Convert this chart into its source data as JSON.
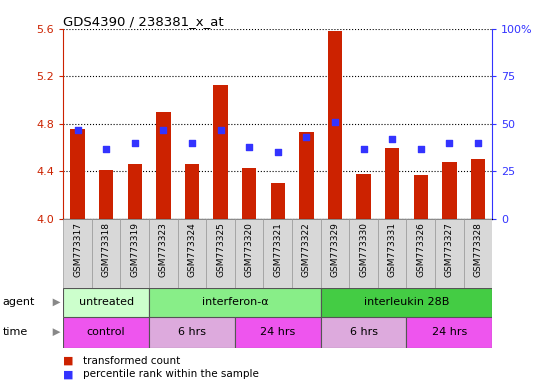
{
  "title": "GDS4390 / 238381_x_at",
  "samples": [
    "GSM773317",
    "GSM773318",
    "GSM773319",
    "GSM773323",
    "GSM773324",
    "GSM773325",
    "GSM773320",
    "GSM773321",
    "GSM773322",
    "GSM773329",
    "GSM773330",
    "GSM773331",
    "GSM773326",
    "GSM773327",
    "GSM773328"
  ],
  "bar_values": [
    4.76,
    4.41,
    4.46,
    4.9,
    4.46,
    5.13,
    4.43,
    4.3,
    4.73,
    5.58,
    4.38,
    4.6,
    4.37,
    4.48,
    4.5
  ],
  "dot_values_pct": [
    47,
    37,
    40,
    47,
    40,
    47,
    38,
    35,
    43,
    51,
    37,
    42,
    37,
    40,
    40
  ],
  "ymin": 4.0,
  "ymax": 5.6,
  "yticks": [
    4.0,
    4.4,
    4.8,
    5.2,
    5.6
  ],
  "right_yticks": [
    0,
    25,
    50,
    75,
    100
  ],
  "right_ytick_labels": [
    "0",
    "25",
    "50",
    "75",
    "100%"
  ],
  "bar_color": "#cc2200",
  "dot_color": "#3333ff",
  "agent_groups": [
    {
      "label": "untreated",
      "start": 0,
      "end": 3,
      "color": "#ccffcc"
    },
    {
      "label": "interferon-α",
      "start": 3,
      "end": 9,
      "color": "#88ee88"
    },
    {
      "label": "interleukin 28B",
      "start": 9,
      "end": 15,
      "color": "#44cc44"
    }
  ],
  "time_groups": [
    {
      "label": "control",
      "start": 0,
      "end": 3,
      "color": "#ee55ee"
    },
    {
      "label": "6 hrs",
      "start": 3,
      "end": 6,
      "color": "#ddaadd"
    },
    {
      "label": "24 hrs",
      "start": 6,
      "end": 9,
      "color": "#ee55ee"
    },
    {
      "label": "6 hrs",
      "start": 9,
      "end": 12,
      "color": "#ddaadd"
    },
    {
      "label": "24 hrs",
      "start": 12,
      "end": 15,
      "color": "#ee55ee"
    }
  ],
  "legend_items": [
    {
      "label": "transformed count",
      "color": "#cc2200"
    },
    {
      "label": "percentile rank within the sample",
      "color": "#3333ff"
    }
  ]
}
